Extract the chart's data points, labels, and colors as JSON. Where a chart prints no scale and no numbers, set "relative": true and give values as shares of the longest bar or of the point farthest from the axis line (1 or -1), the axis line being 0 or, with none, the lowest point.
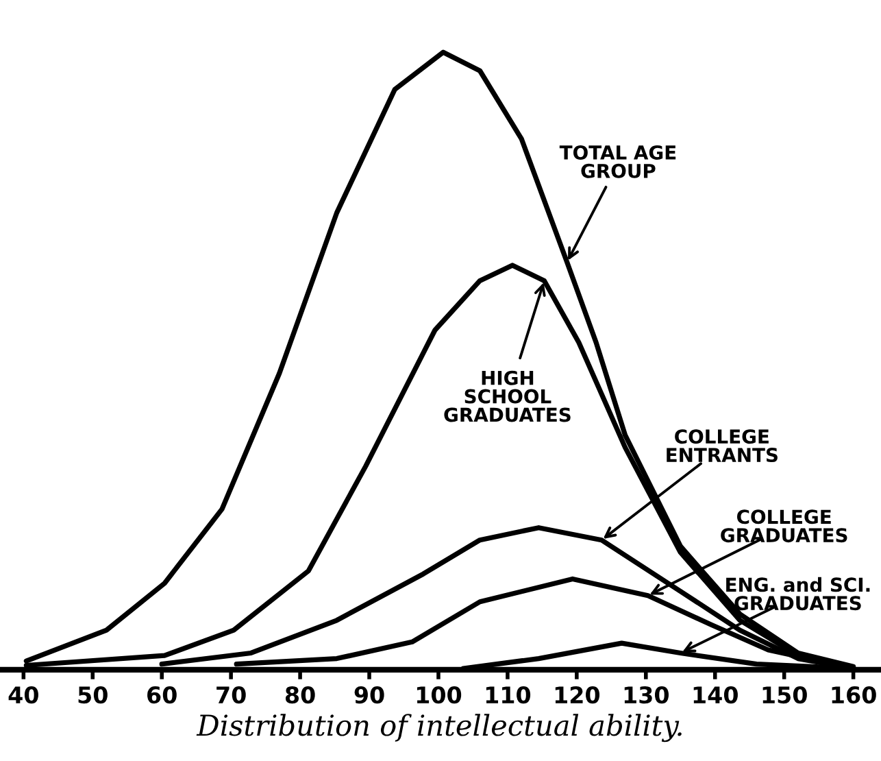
{
  "chart_data": {
    "type": "line",
    "title": "Distribution of intellectual ability.",
    "relative": true,
    "xlim": [
      36.6,
      164
    ],
    "xticks": [
      40,
      50,
      60,
      70,
      80,
      90,
      100,
      110,
      120,
      130,
      140,
      150,
      160
    ],
    "grid": false,
    "legend": false,
    "marker": "none",
    "line_style": "solid",
    "series": [
      {
        "name": "TOTAL AGE GROUP",
        "color": "#000000",
        "x": [
          40.4,
          52,
          60.4,
          68.7,
          77,
          85.3,
          93.7,
          100.7,
          106,
          112,
          118.6,
          122.8,
          127,
          135,
          143.6,
          152,
          160
        ],
        "values": [
          0.014,
          0.064,
          0.14,
          0.26,
          0.48,
          0.74,
          0.94,
          1.0,
          0.97,
          0.86,
          0.66,
          0.53,
          0.38,
          0.2,
          0.09,
          0.027,
          0.005
        ]
      },
      {
        "name": "HIGH SCHOOL GRADUATES",
        "color": "#000000",
        "x": [
          40.4,
          60.4,
          70.4,
          81.2,
          89.5,
          99.5,
          106,
          110.7,
          115.3,
          120.3,
          127,
          135,
          143.6,
          152,
          160
        ],
        "values": [
          0.007,
          0.023,
          0.064,
          0.16,
          0.33,
          0.55,
          0.63,
          0.655,
          0.63,
          0.53,
          0.36,
          0.19,
          0.08,
          0.023,
          0.003
        ]
      },
      {
        "name": "COLLEGE ENTRANTS",
        "color": "#000000",
        "x": [
          60,
          72.9,
          85.3,
          97.8,
          106,
          114.5,
          123.6,
          135,
          143.6,
          152,
          160
        ],
        "values": [
          0.009,
          0.027,
          0.08,
          0.155,
          0.21,
          0.23,
          0.21,
          0.127,
          0.064,
          0.018,
          0.002
        ]
      },
      {
        "name": "COLLEGE GRADUATES",
        "color": "#000000",
        "x": [
          70.8,
          85.3,
          96.2,
          106,
          119.4,
          130.3,
          139.4,
          147.7,
          160
        ],
        "values": [
          0.009,
          0.018,
          0.045,
          0.11,
          0.147,
          0.12,
          0.073,
          0.032,
          0.002
        ]
      },
      {
        "name": "ENG. and SCI. GRADUATES",
        "color": "#000000",
        "x": [
          103.6,
          114.5,
          126.5,
          135,
          146,
          160
        ],
        "values": [
          0.002,
          0.018,
          0.043,
          0.027,
          0.009,
          0.002
        ]
      }
    ]
  }
}
